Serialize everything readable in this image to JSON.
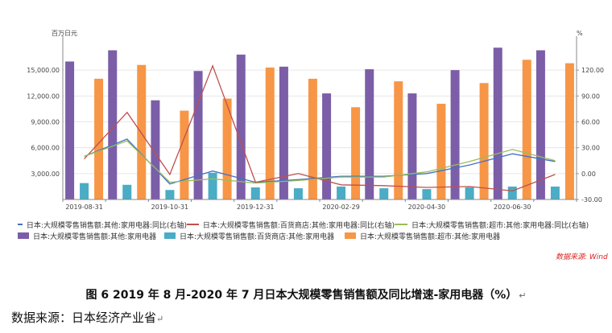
{
  "chart_data": {
    "type": "bar",
    "left_unit": "百万日元",
    "right_unit": "%",
    "left_ylim": [
      0,
      18000
    ],
    "left_ticks": [
      "3,000.00",
      "6,000.00",
      "9,000.00",
      "12,000.00",
      "15,000.00"
    ],
    "left_tick_values": [
      3000,
      6000,
      9000,
      12000,
      15000
    ],
    "right_ylim": [
      -30,
      150
    ],
    "right_ticks": [
      "-30.00",
      "0.00",
      "30.00",
      "60.00",
      "90.00",
      "120.00"
    ],
    "right_tick_values": [
      -30,
      0,
      30,
      60,
      90,
      120
    ],
    "categories": [
      "2019-08",
      "2019-09",
      "2019-10",
      "2019-11",
      "2019-12",
      "2020-01",
      "2020-02",
      "2020-03",
      "2020-04",
      "2020-05",
      "2020-06",
      "2020-07"
    ],
    "x_tick_labels": [
      "2019-08-31",
      "2019-10-31",
      "2019-12-31",
      "2020-02-29",
      "2020-04-30",
      "2020-06-30"
    ],
    "x_tick_indices": [
      0,
      2,
      4,
      6,
      8,
      10
    ],
    "bar_series": [
      {
        "name": "日本:大规模零售销售额:其他:家用电器",
        "color": "#7b5ea7",
        "values": [
          16000,
          17300,
          11500,
          14900,
          16800,
          15400,
          12300,
          15100,
          12300,
          15000,
          17600,
          17300
        ]
      },
      {
        "name": "日本:大规模零售销售额:百货商店:其他:家用电器",
        "color": "#4aacc5",
        "values": [
          1900,
          1700,
          1100,
          3100,
          1400,
          1300,
          1500,
          1300,
          1200,
          1400,
          1500,
          1500
        ]
      },
      {
        "name": "日本:大规模零售销售额:超市:其他:家用电器",
        "color": "#f79646",
        "values": [
          14000,
          15600,
          10300,
          11700,
          15300,
          14000,
          10700,
          13700,
          11100,
          13500,
          16200,
          15800
        ]
      }
    ],
    "line_series": [
      {
        "name": "日本:大规模零售销售额:其他:家用电器:同比(右轴)",
        "color": "#4472c4",
        "values": [
          20,
          40,
          -12,
          3,
          -10,
          -7,
          -3,
          -3,
          0,
          10,
          23,
          14
        ]
      },
      {
        "name": "日本:大规模零售销售额:百货商店:其他:家用电器:同比(右轴)",
        "color": "#c0504d",
        "values": [
          17,
          71,
          -1,
          125,
          -10,
          0,
          -13,
          -14,
          -16,
          -15,
          -20,
          -1
        ]
      },
      {
        "name": "日本:大规模零售销售额:超市:其他:家用电器:同比(右轴)",
        "color": "#9bbb59",
        "values": [
          20,
          38,
          -10,
          -6,
          -11,
          -8,
          -4,
          -4,
          2,
          14,
          28,
          15
        ]
      }
    ]
  },
  "source_wind": "数据来源: Wind",
  "caption": "图 6  2019 年 8 月-2020 年 7 月日本大规模零售销售额及同比增速-家用电器（%）",
  "source_note": "数据来源：日本经济产业省",
  "return_mark": "↵"
}
